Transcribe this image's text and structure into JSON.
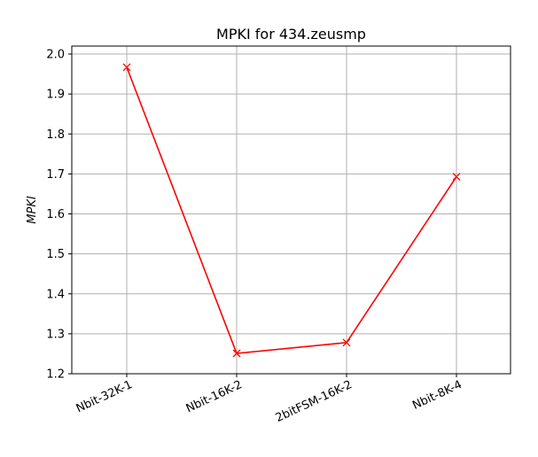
{
  "chart_data": {
    "type": "line",
    "title": "MPKI for 434.zeusmp",
    "xlabel": "",
    "ylabel": "MPKI",
    "categories": [
      "Nbit-32K-1",
      "Nbit-16K-2",
      "2bitFSM-16K-2",
      "Nbit-8K-4"
    ],
    "series": [
      {
        "values": [
          1.967,
          1.251,
          1.278,
          1.693
        ],
        "color": "#ff0000",
        "marker": "x"
      }
    ],
    "ylim": [
      1.2,
      2.02
    ],
    "yticks": [
      "1.2",
      "1.3",
      "1.4",
      "1.5",
      "1.6",
      "1.7",
      "1.8",
      "1.9",
      "2.0"
    ],
    "grid": true,
    "legend": "none",
    "xtick_rotation": "25 degrees"
  }
}
